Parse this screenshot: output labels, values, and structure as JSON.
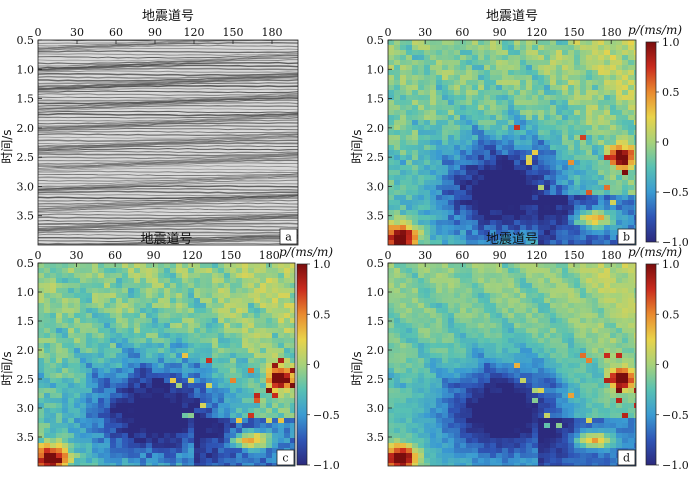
{
  "colors": {
    "colormap": [
      "#2c2a7d",
      "#2f55b6",
      "#3b9bd2",
      "#58c1b3",
      "#a7d27a",
      "#e9d34a",
      "#e98a2f",
      "#c92b1e",
      "#7a0d0d"
    ],
    "seismic_light": "#d9d9d9",
    "seismic_dark": "#4a4a4a"
  },
  "chart_data": [
    {
      "panel": "a",
      "type": "heatmap",
      "title": "地震道号",
      "xlabel": "",
      "ylabel": "时间/s",
      "xlim": [
        0,
        200
      ],
      "ylim": [
        0.5,
        4.0
      ],
      "x_ticks": [
        "0",
        "30",
        "60",
        "90",
        "120",
        "150",
        "180"
      ],
      "y_ticks": [
        "0.5",
        "1.0",
        "1.5",
        "2.0",
        "2.5",
        "3.0",
        "3.5"
      ],
      "panel_label": "a",
      "colorbar": null
    },
    {
      "panel": "b",
      "type": "heatmap",
      "title": "地震道号",
      "xlabel": "",
      "ylabel": "时间/s",
      "xlim": [
        0,
        200
      ],
      "ylim": [
        0.5,
        4.0
      ],
      "x_ticks": [
        "0",
        "30",
        "60",
        "90",
        "120",
        "150",
        "180"
      ],
      "y_ticks": [
        "0.5",
        "1.0",
        "1.5",
        "2.0",
        "2.5",
        "3.0",
        "3.5"
      ],
      "panel_label": "b",
      "colorbar": {
        "label": "p/(ms/m)",
        "range": [
          -1.0,
          1.0
        ],
        "ticks": [
          "1.0",
          "0.5",
          "0",
          "−0.5",
          "−1.0"
        ]
      }
    },
    {
      "panel": "c",
      "type": "heatmap",
      "title": "地震道号",
      "xlabel": "",
      "ylabel": "时间/s",
      "xlim": [
        0,
        200
      ],
      "ylim": [
        0.5,
        4.0
      ],
      "x_ticks": [
        "0",
        "30",
        "60",
        "90",
        "120",
        "150",
        "180"
      ],
      "y_ticks": [
        "0.5",
        "1.0",
        "1.5",
        "2.0",
        "2.5",
        "3.0",
        "3.5"
      ],
      "panel_label": "c",
      "colorbar": {
        "label": "p/(ms/m)",
        "range": [
          -1.0,
          1.0
        ],
        "ticks": [
          "1.0",
          "0.5",
          "0",
          "−0.5",
          "−1.0"
        ]
      }
    },
    {
      "panel": "d",
      "type": "heatmap",
      "title": "地震道号",
      "xlabel": "",
      "ylabel": "时间/s",
      "xlim": [
        0,
        200
      ],
      "ylim": [
        0.5,
        4.0
      ],
      "x_ticks": [
        "0",
        "30",
        "60",
        "90",
        "120",
        "150",
        "180"
      ],
      "y_ticks": [
        "0.5",
        "1.0",
        "1.5",
        "2.0",
        "2.5",
        "3.0",
        "3.5"
      ],
      "panel_label": "d",
      "colorbar": {
        "label": "p/(ms/m)",
        "range": [
          -1.0,
          1.0
        ],
        "ticks": [
          "1.0",
          "0.5",
          "0",
          "−0.5",
          "−1.0"
        ]
      }
    }
  ]
}
